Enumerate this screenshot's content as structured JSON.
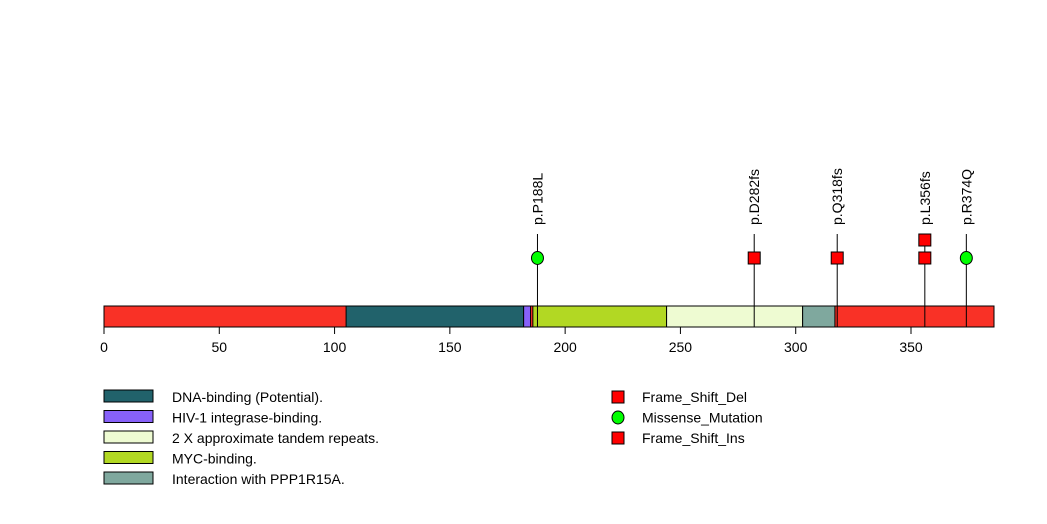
{
  "chart_data": {
    "type": "lollipop",
    "xlim": [
      0,
      386
    ],
    "x_ticks": [
      0,
      50,
      100,
      150,
      200,
      250,
      300,
      350
    ],
    "backbone_color": "#f93126",
    "domains": [
      {
        "name": "DNA-binding (Potential).",
        "start": 105,
        "end": 182,
        "color": "#21626b"
      },
      {
        "name": "HIV-1 integrase-binding.",
        "start": 182,
        "end": 185,
        "color": "#8761f9"
      },
      {
        "name": "MYC-binding.",
        "start": 186,
        "end": 244,
        "color": "#b2d823"
      },
      {
        "name": "2 X approximate tandem repeats.",
        "start": 244,
        "end": 303,
        "color": "#eefbd2"
      },
      {
        "name": "Interaction with PPP1R15A.",
        "start": 303,
        "end": 317,
        "color": "#7fa89e"
      }
    ],
    "legend_domains": [
      {
        "name": "DNA-binding (Potential).",
        "color": "#21626b"
      },
      {
        "name": "HIV-1 integrase-binding.",
        "color": "#8761f9"
      },
      {
        "name": "2 X approximate tandem repeats.",
        "color": "#eefbd2"
      },
      {
        "name": "MYC-binding.",
        "color": "#b2d823"
      },
      {
        "name": "Interaction with PPP1R15A.",
        "color": "#7fa89e"
      }
    ],
    "legend_mutations": [
      {
        "name": "Frame_Shift_Del",
        "shape": "square",
        "color": "#ff0000"
      },
      {
        "name": "Missense_Mutation",
        "shape": "circle",
        "color": "#00ff00"
      },
      {
        "name": "Frame_Shift_Ins",
        "shape": "square",
        "color": "#ff0000"
      }
    ],
    "mutations": [
      {
        "label": "p.P188L",
        "position": 188,
        "markers": [
          {
            "type": "Missense_Mutation",
            "shape": "circle",
            "color": "#00ff00"
          }
        ]
      },
      {
        "label": "p.D282fs",
        "position": 282,
        "markers": [
          {
            "type": "Frame_Shift_Del",
            "shape": "square",
            "color": "#ff0000"
          }
        ]
      },
      {
        "label": "p.Q318fs",
        "position": 318,
        "markers": [
          {
            "type": "Frame_Shift_Del",
            "shape": "square",
            "color": "#ff0000"
          }
        ]
      },
      {
        "label": "p.L356fs",
        "position": 356,
        "markers": [
          {
            "type": "Frame_Shift_Del",
            "shape": "square",
            "color": "#ff0000"
          },
          {
            "type": "Frame_Shift_Ins",
            "shape": "square",
            "color": "#ff0000"
          }
        ]
      },
      {
        "label": "p.R374Q",
        "position": 374,
        "markers": [
          {
            "type": "Missense_Mutation",
            "shape": "circle",
            "color": "#00ff00"
          }
        ]
      }
    ]
  }
}
